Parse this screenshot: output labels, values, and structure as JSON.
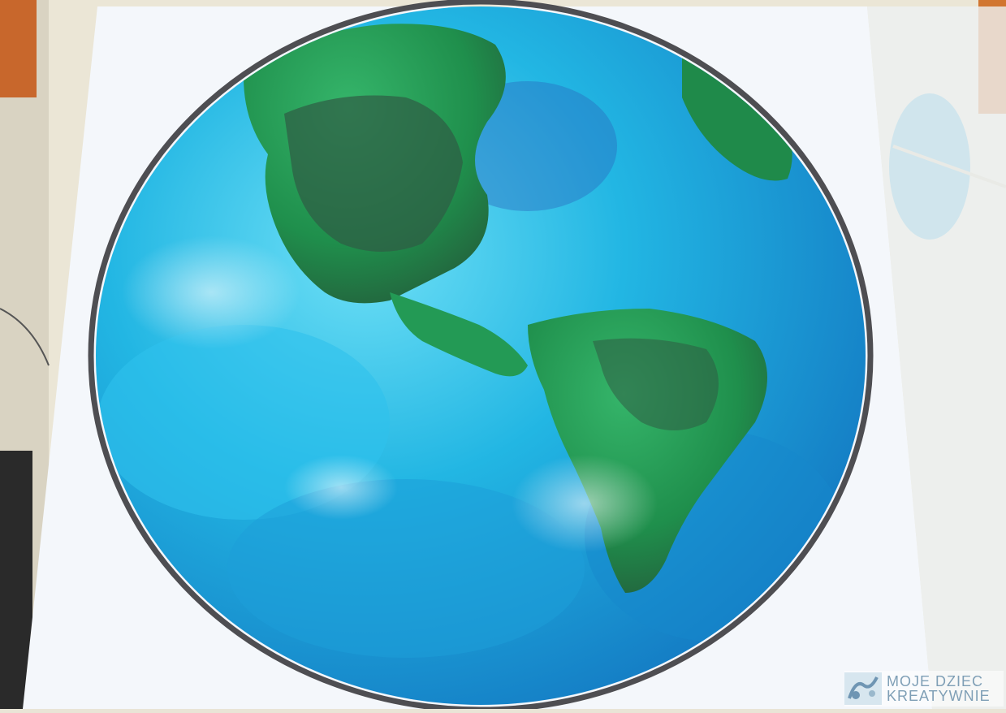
{
  "image": {
    "subject": "earth-globe-painting",
    "colors": {
      "ocean": "#1fb3e0",
      "ocean_deep": "#1378c2",
      "land": "#1f8f4c",
      "land_dark": "#245a3a",
      "paper": "#f4f7fb",
      "outline": "#4e4e52"
    }
  },
  "watermark": {
    "line1": "MOJE DZIEC",
    "line2": "KREATYWNIE",
    "color": "#7f9fb6"
  }
}
